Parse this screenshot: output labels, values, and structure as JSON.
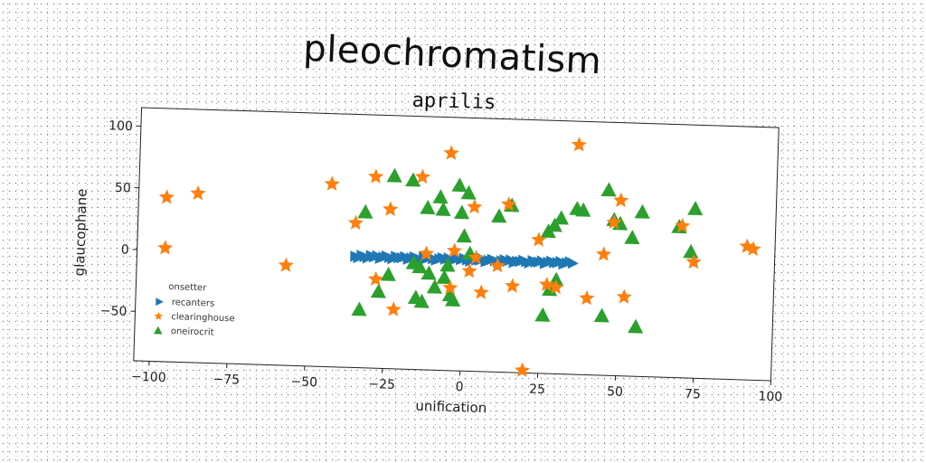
{
  "title": "pleochromatism",
  "subtitle": "aprilis",
  "colors": {
    "recanters": "#1f77b4",
    "clearinghouse": "#ff7f0e",
    "oneirocrit": "#2ca02c"
  },
  "chart_data": {
    "type": "scatter",
    "title": "aprilis",
    "xlabel": "unification",
    "ylabel": "glaucophane",
    "xlim": [
      -105,
      100
    ],
    "ylim": [
      -90,
      115
    ],
    "xticks": [
      -100,
      -75,
      -50,
      -25,
      0,
      25,
      50,
      75,
      100
    ],
    "yticks": [
      -50,
      0,
      50,
      100
    ],
    "xtick_labels": [
      "−100",
      "−75",
      "−50",
      "−25",
      "0",
      "25",
      "50",
      "75",
      "100"
    ],
    "ytick_labels": [
      "−50",
      "0",
      "50",
      "100"
    ],
    "grid": false,
    "legend": {
      "title": "onsetter",
      "placement": "lower-left"
    },
    "series": [
      {
        "name": "recanters",
        "marker": "triangle-right",
        "x": [
          -35,
          -34,
          -33,
          -32,
          -31,
          -30,
          -29,
          -28,
          -27,
          -26,
          -25,
          -24,
          -23,
          -22,
          -21,
          -20,
          -19,
          -18,
          -17,
          -16,
          -15,
          -14,
          -13,
          -12,
          -11,
          -10,
          -9,
          -8,
          -7,
          -6,
          -5,
          -4,
          -3,
          -2,
          -1,
          0,
          1,
          2,
          3,
          4,
          5,
          6,
          7,
          8,
          9,
          10,
          11,
          12,
          13,
          14,
          15,
          16,
          17,
          18,
          19,
          20,
          21,
          22,
          23,
          24,
          25,
          26,
          27,
          28,
          29,
          30,
          31,
          32,
          33,
          34,
          35
        ],
        "y": [
          0,
          -1,
          1,
          0,
          -1,
          1,
          0,
          1,
          -1,
          0,
          1,
          0,
          -1,
          1,
          0,
          0,
          1,
          -1,
          0,
          1,
          0,
          -1,
          1,
          0,
          1,
          0,
          -1,
          0,
          1,
          0,
          1,
          -1,
          0,
          1,
          0,
          1,
          0,
          -1,
          1,
          0,
          0,
          1,
          -1,
          0,
          1,
          0,
          -1,
          0,
          1,
          0,
          1,
          -1,
          0,
          0,
          1,
          0,
          -1,
          1,
          0,
          0,
          1,
          -1,
          0,
          1,
          0,
          0,
          1,
          -1,
          0,
          1,
          0
        ]
      },
      {
        "name": "clearinghouse",
        "marker": "star",
        "x": [
          -96,
          -96,
          -86,
          -57,
          -43,
          -35,
          -29,
          -28,
          -24,
          -14,
          -12,
          -5,
          -4,
          -3,
          2,
          3,
          4,
          6,
          11,
          14,
          16,
          20,
          24,
          27,
          30,
          36,
          40,
          45,
          48,
          50,
          52,
          70,
          74,
          91,
          93,
          -22
        ],
        "y": [
          43,
          2,
          47,
          -9,
          58,
          27,
          65,
          -18,
          39,
          66,
          4,
          86,
          -23,
          7,
          -9,
          43,
          2,
          -26,
          -4,
          46,
          -20,
          -88,
          18,
          -18,
          -20,
          96,
          -28,
          8,
          34,
          52,
          -26,
          33,
          4,
          18,
          16,
          -42
        ],
        "ignore": true
      },
      {
        "name": "oneirocrit",
        "marker": "triangle-up",
        "x": [
          -32,
          -33,
          -27,
          -24,
          -23,
          -17,
          -16,
          -15,
          -14,
          -13,
          -12,
          -11,
          -9,
          -8,
          -7,
          -6,
          -5,
          -4,
          -3,
          -2,
          -1,
          0,
          1,
          2,
          11,
          15,
          26,
          27,
          28,
          29,
          30,
          31,
          36,
          38,
          45,
          46,
          48,
          50,
          54,
          56,
          57,
          69,
          73,
          74
        ],
        "y": [
          36,
          -43,
          -28,
          -14,
          66,
          63,
          -4,
          -32,
          -7,
          -35,
          41,
          -12,
          -23,
          50,
          40,
          -15,
          -5,
          -29,
          -33,
          60,
          38,
          19,
          54,
          5,
          36,
          45,
          -43,
          25,
          -22,
          30,
          -14,
          36,
          44,
          43,
          -42,
          60,
          36,
          33,
          22,
          -50,
          43,
          32,
          12,
          47
        ]
      }
    ]
  }
}
